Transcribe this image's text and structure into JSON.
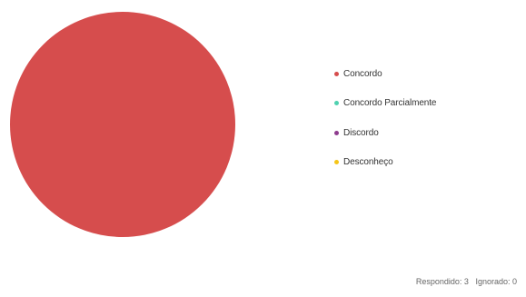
{
  "chart_data": {
    "type": "pie",
    "categories": [
      "Concordo",
      "Concordo Parcialmente",
      "Discordo",
      "Desconheço"
    ],
    "values": [
      3,
      0,
      0,
      0
    ],
    "colors": [
      "#d64d4d",
      "#4fd1b0",
      "#8e3c8e",
      "#f5c518"
    ],
    "legend_position": "right"
  },
  "footer": {
    "answered": "Respondido: 3",
    "ignored": "Ignorado: 0"
  }
}
